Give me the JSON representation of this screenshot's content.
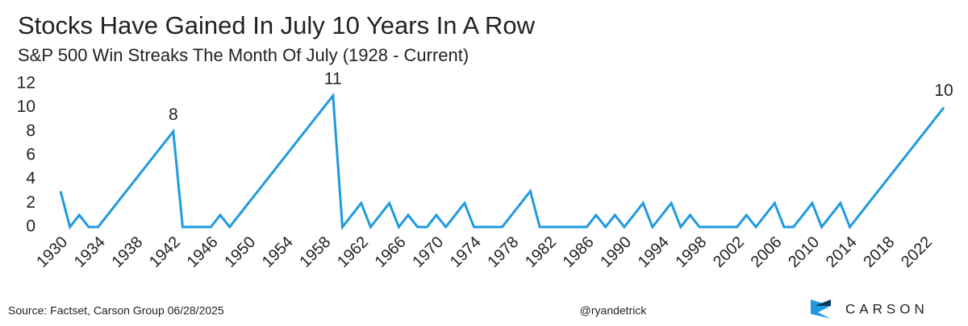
{
  "chart_data": {
    "type": "line",
    "title": "Stocks Have Gained In July 10 Years In A Row",
    "subtitle": "S&P 500 Win Streaks The Month Of July (1928 - Current)",
    "x": [
      1930,
      1931,
      1932,
      1933,
      1934,
      1935,
      1936,
      1937,
      1938,
      1939,
      1940,
      1941,
      1942,
      1943,
      1944,
      1945,
      1946,
      1947,
      1948,
      1949,
      1950,
      1951,
      1952,
      1953,
      1954,
      1955,
      1956,
      1957,
      1958,
      1959,
      1960,
      1961,
      1962,
      1963,
      1964,
      1965,
      1966,
      1967,
      1968,
      1969,
      1970,
      1971,
      1972,
      1973,
      1974,
      1975,
      1976,
      1977,
      1978,
      1979,
      1980,
      1981,
      1982,
      1983,
      1984,
      1985,
      1986,
      1987,
      1988,
      1989,
      1990,
      1991,
      1992,
      1993,
      1994,
      1995,
      1996,
      1997,
      1998,
      1999,
      2000,
      2001,
      2002,
      2003,
      2004,
      2005,
      2006,
      2007,
      2008,
      2009,
      2010,
      2011,
      2012,
      2013,
      2014,
      2015,
      2016,
      2017,
      2018,
      2019,
      2020,
      2021,
      2022,
      2023,
      2024
    ],
    "values": [
      3,
      0,
      1,
      0,
      0,
      1,
      2,
      3,
      4,
      5,
      6,
      7,
      8,
      0,
      0,
      0,
      0,
      1,
      0,
      1,
      2,
      3,
      4,
      5,
      6,
      7,
      8,
      9,
      10,
      11,
      0,
      1,
      2,
      0,
      1,
      2,
      0,
      1,
      0,
      0,
      1,
      0,
      1,
      2,
      0,
      0,
      0,
      0,
      1,
      2,
      3,
      0,
      0,
      0,
      0,
      0,
      0,
      1,
      0,
      1,
      0,
      1,
      2,
      0,
      1,
      2,
      0,
      1,
      0,
      0,
      0,
      0,
      0,
      1,
      0,
      1,
      2,
      0,
      0,
      1,
      2,
      0,
      1,
      2,
      0,
      1,
      2,
      3,
      4,
      5,
      6,
      7,
      8,
      9,
      10
    ],
    "color": "#1f9ae0",
    "xlim": [
      1930,
      2024
    ],
    "xticks": [
      1930,
      1934,
      1938,
      1942,
      1946,
      1950,
      1954,
      1958,
      1962,
      1966,
      1970,
      1974,
      1978,
      1982,
      1986,
      1990,
      1994,
      1998,
      2002,
      2006,
      2010,
      2014,
      2018,
      2022
    ],
    "ylim": [
      0,
      12
    ],
    "yticks": [
      0,
      2,
      4,
      6,
      8,
      10,
      12
    ],
    "grid": false
  },
  "footer": {
    "source": "Source: Factset, Carson Group 06/28/2025",
    "handle": "@ryandetrick",
    "logo": "CARSON"
  }
}
